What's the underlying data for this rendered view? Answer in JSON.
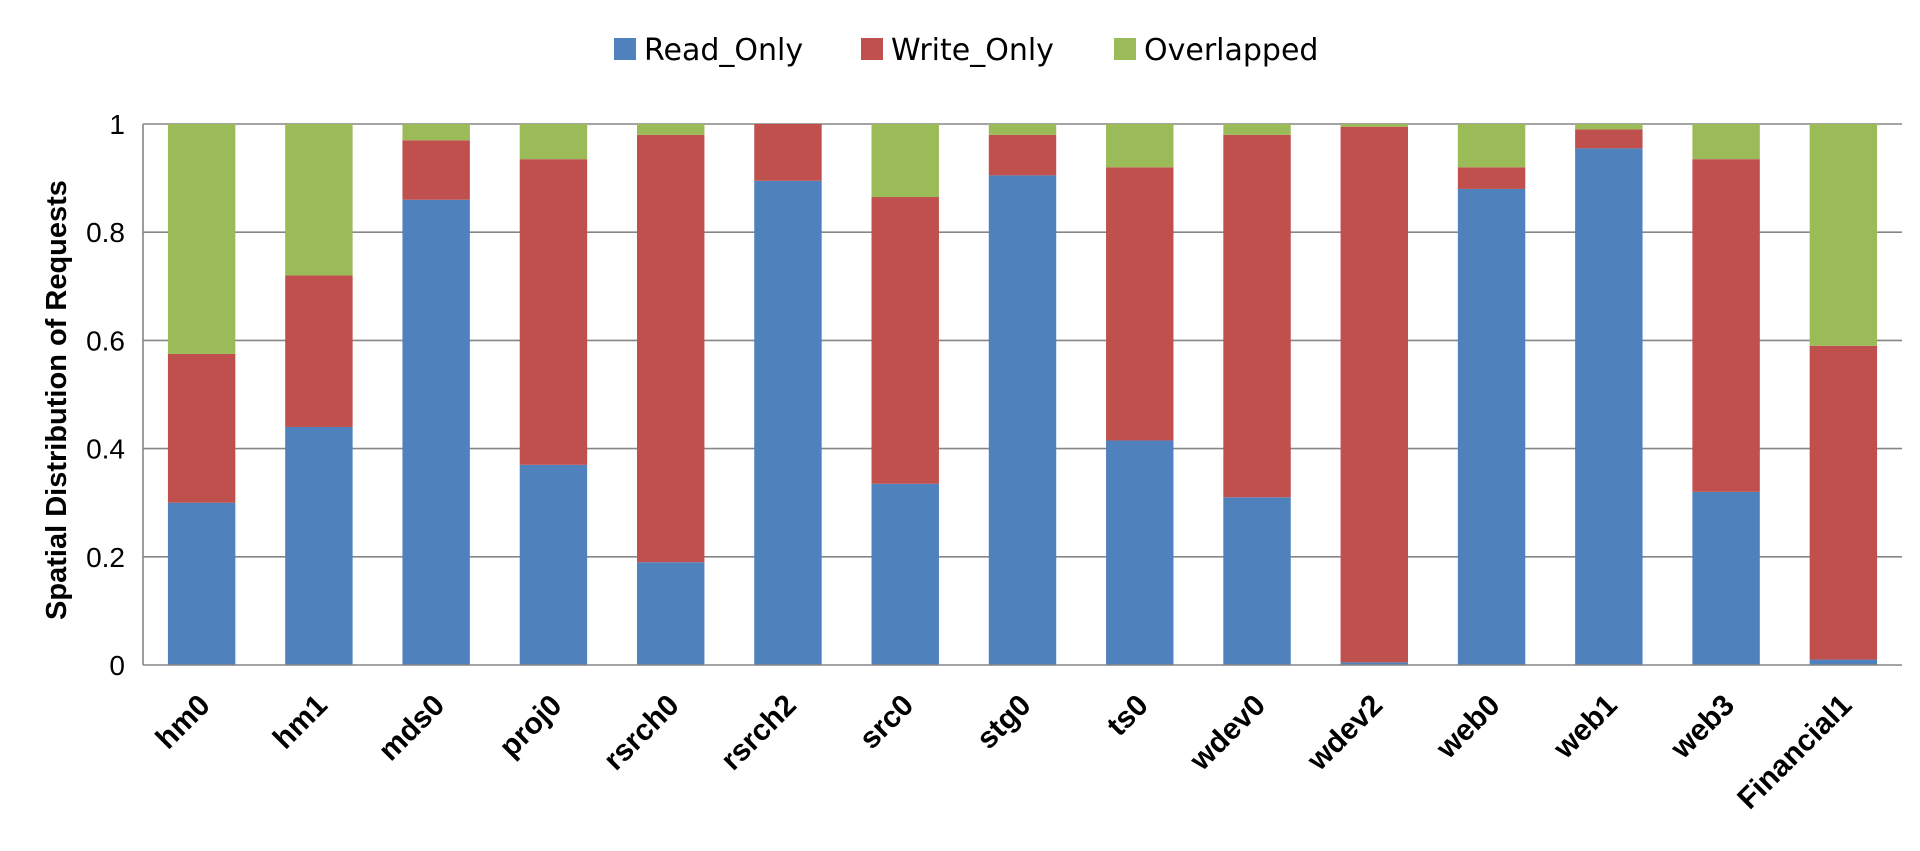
{
  "chart_data": {
    "type": "bar",
    "stacked": true,
    "title": "",
    "xlabel": "",
    "ylabel": "Spatial Distribution of  Requests",
    "ylim": [
      0,
      1
    ],
    "yticks": [
      "0",
      "0.2",
      "0.4",
      "0.6",
      "0.8",
      "1"
    ],
    "grid": true,
    "legend_position": "top-center",
    "categories": [
      "hm0",
      "hm1",
      "mds0",
      "proj0",
      "rsrch0",
      "rsrch2",
      "src0",
      "stg0",
      "ts0",
      "wdev0",
      "wdev2",
      "web0",
      "web1",
      "web3",
      "Financial1"
    ],
    "series": [
      {
        "name": "Read_Only",
        "color": "#4F81BD",
        "values": [
          0.3,
          0.44,
          0.86,
          0.37,
          0.19,
          0.895,
          0.335,
          0.905,
          0.415,
          0.31,
          0.005,
          0.88,
          0.955,
          0.32,
          0.01
        ]
      },
      {
        "name": "Write_Only",
        "color": "#C0504D",
        "values": [
          0.275,
          0.28,
          0.11,
          0.565,
          0.79,
          0.105,
          0.53,
          0.075,
          0.505,
          0.67,
          0.99,
          0.04,
          0.035,
          0.615,
          0.58
        ]
      },
      {
        "name": "Overlapped",
        "color": "#9BBB59",
        "values": [
          0.425,
          0.28,
          0.03,
          0.065,
          0.02,
          0.0,
          0.135,
          0.02,
          0.08,
          0.02,
          0.005,
          0.08,
          0.01,
          0.065,
          0.41
        ]
      }
    ]
  }
}
